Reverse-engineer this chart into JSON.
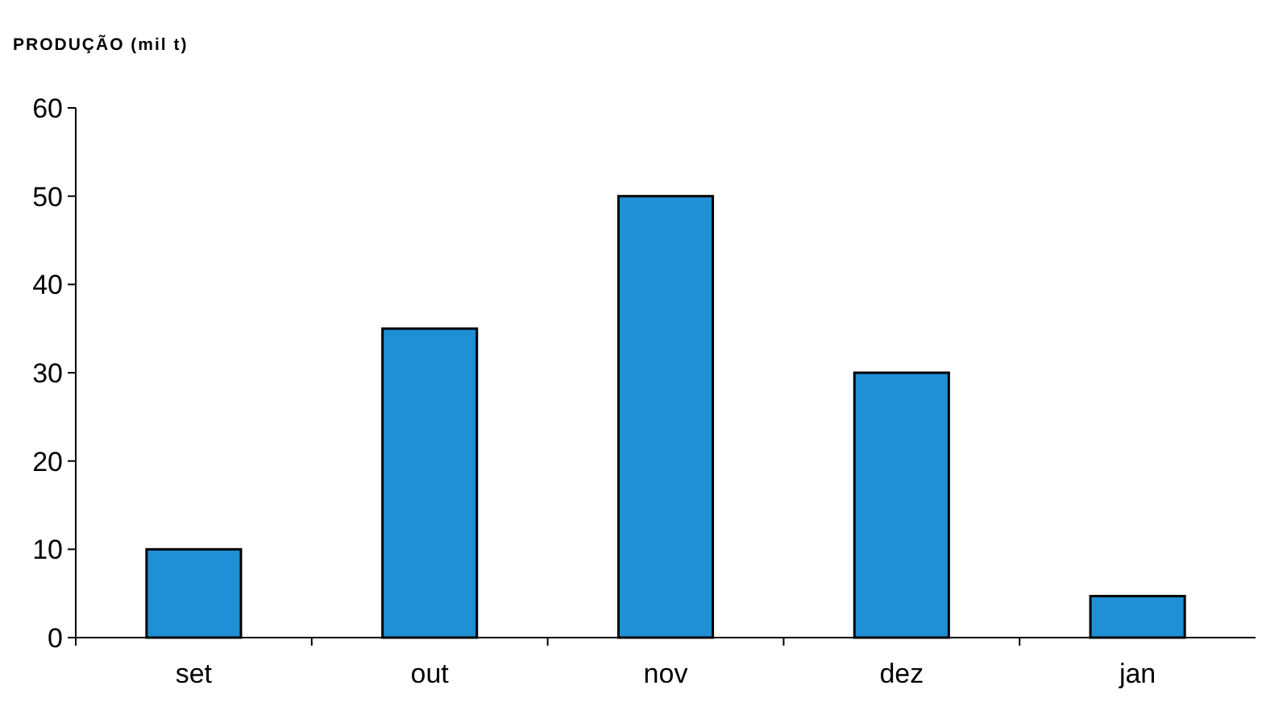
{
  "chart_data": {
    "type": "bar",
    "ylabel": "PRODUÇÃO (mil t)",
    "categories": [
      "set",
      "out",
      "nov",
      "dez",
      "jan"
    ],
    "values": [
      10,
      35,
      50,
      30,
      4.7
    ],
    "color": "#1f8fd6",
    "ylim": [
      0,
      60
    ],
    "yticks": [
      0,
      10,
      20,
      30,
      40,
      50,
      60
    ],
    "grid": false
  }
}
